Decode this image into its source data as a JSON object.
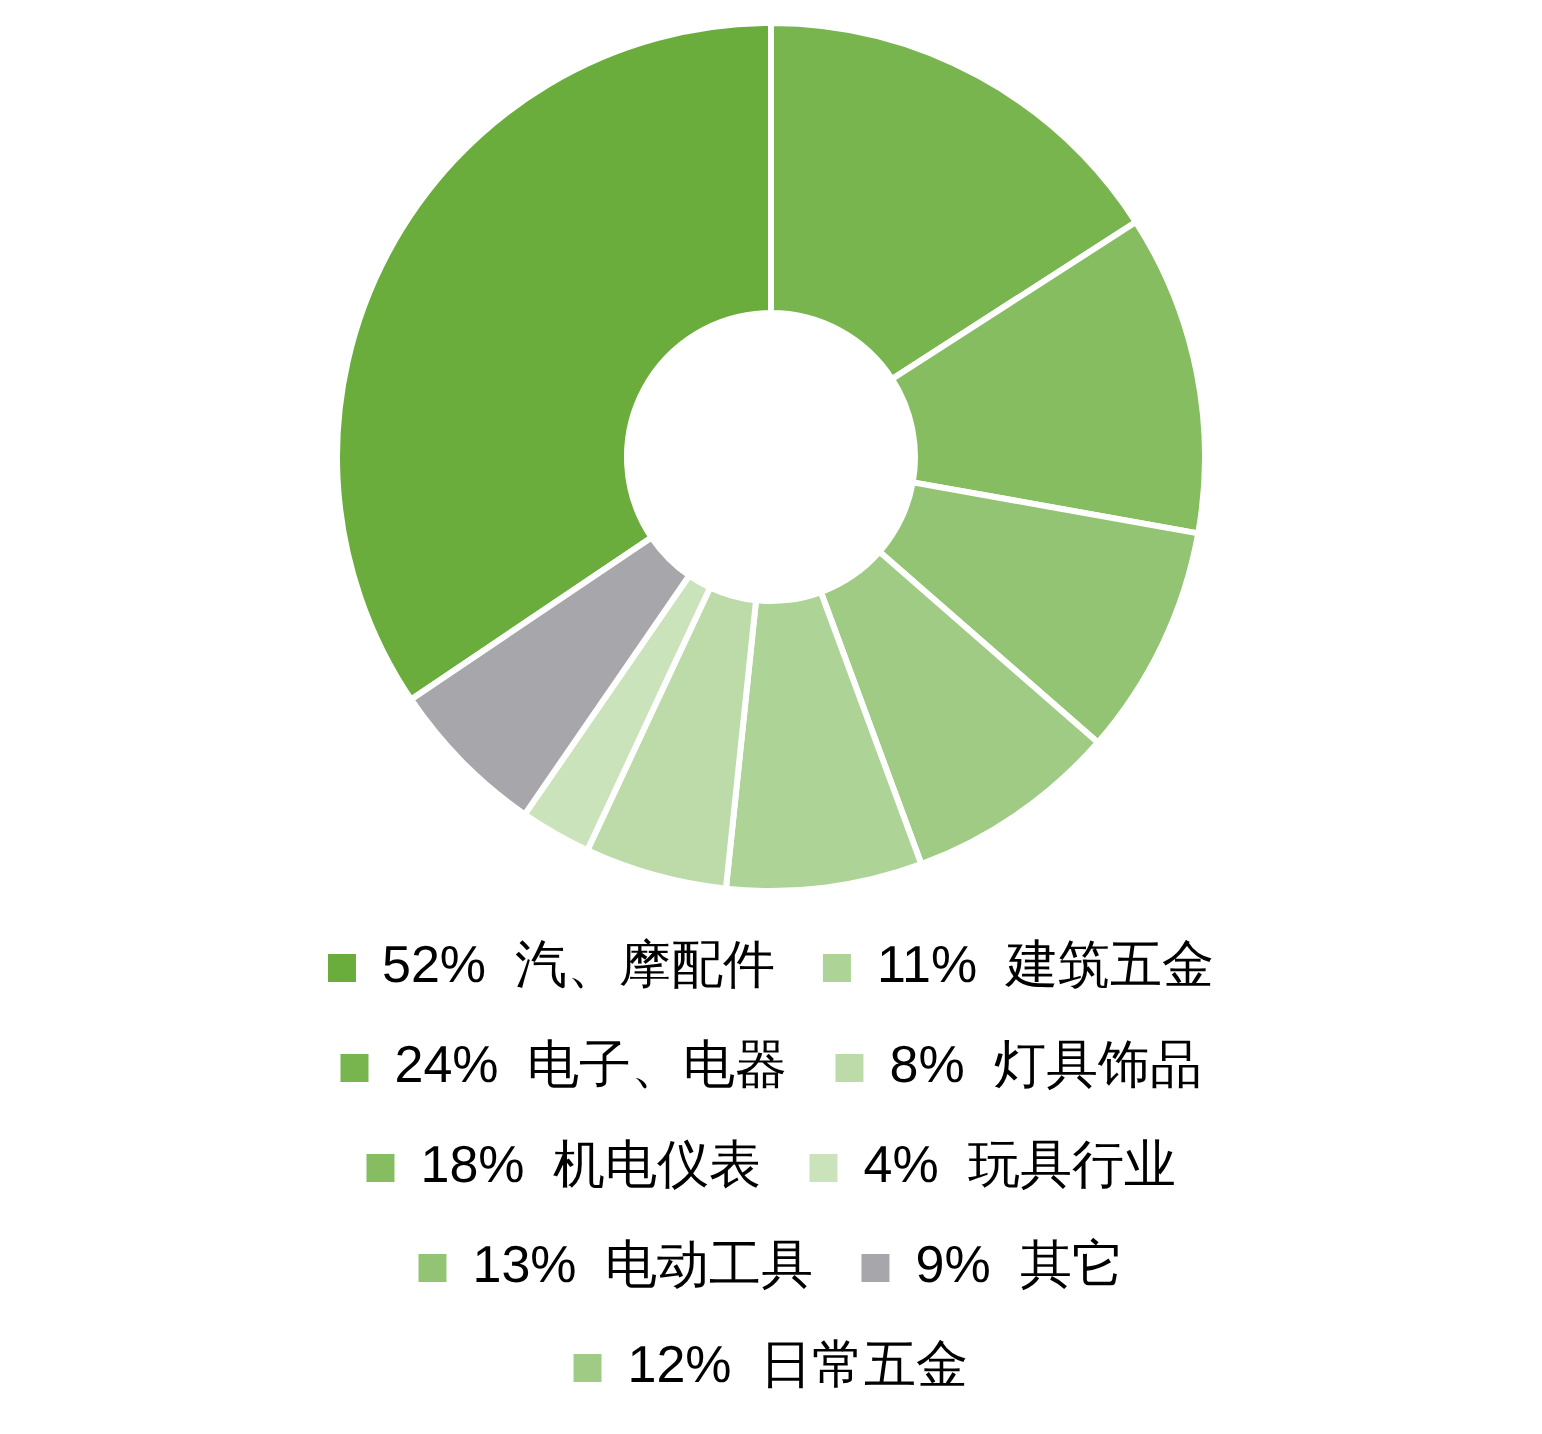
{
  "chart_data": {
    "type": "donut",
    "categories": [
      "汽、摩配件",
      "电子、电器",
      "机电仪表",
      "电动工具",
      "日常五金",
      "建筑五金",
      "灯具饰品",
      "玩具行业",
      "其它"
    ],
    "values": [
      52,
      24,
      18,
      13,
      12,
      11,
      8,
      4,
      9
    ],
    "value_labels": [
      "52%",
      "24%",
      "18%",
      "13%",
      "12%",
      "11%",
      "8%",
      "4%",
      "9%"
    ],
    "colors": [
      "#6aad3d",
      "#78b54f",
      "#86bd61",
      "#93c473",
      "#a0cb85",
      "#aed396",
      "#bcdba9",
      "#cbe3bb",
      "#a7a7ab"
    ],
    "legend": "bottom"
  }
}
